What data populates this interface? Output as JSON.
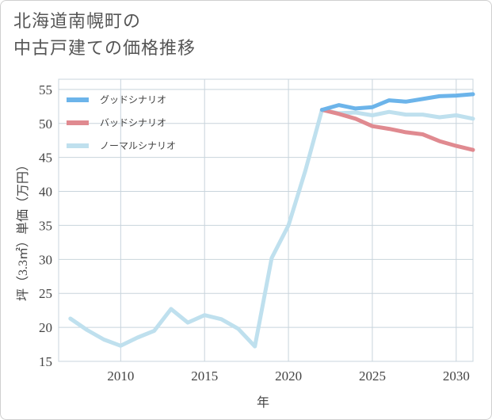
{
  "title_lines": [
    "北海道南幌町の",
    "中古戸建ての価格推移"
  ],
  "chart_data": {
    "type": "line",
    "xlabel": "年",
    "ylabel": "坪（3.3㎡）単価（万円）",
    "xlim": [
      2006.3,
      2031
    ],
    "ylim": [
      15,
      56.5
    ],
    "xticks": [
      2010,
      2015,
      2020,
      2025,
      2030
    ],
    "yticks": [
      15,
      20,
      25,
      30,
      35,
      40,
      45,
      50,
      55
    ],
    "grid": true,
    "legend_position": "top-left",
    "series": [
      {
        "name": "グッドシナリオ",
        "color": "#6cb4ea",
        "x": [
          2022,
          2023,
          2024,
          2025,
          2026,
          2027,
          2028,
          2029,
          2030,
          2031
        ],
        "y": [
          52.0,
          52.7,
          52.2,
          52.4,
          53.4,
          53.2,
          53.6,
          54.0,
          54.1,
          54.3
        ]
      },
      {
        "name": "バッドシナリオ",
        "color": "#e08a90",
        "x": [
          2022,
          2023,
          2024,
          2025,
          2026,
          2027,
          2028,
          2029,
          2030,
          2031
        ],
        "y": [
          52.0,
          51.4,
          50.7,
          49.6,
          49.2,
          48.7,
          48.4,
          47.4,
          46.7,
          46.1
        ]
      },
      {
        "name": "ノーマルシナリオ",
        "color": "#bfe0ee",
        "x": [
          2007,
          2008,
          2009,
          2010,
          2011,
          2012,
          2013,
          2014,
          2015,
          2016,
          2017,
          2018,
          2019,
          2020,
          2021,
          2022,
          2023,
          2024,
          2025,
          2026,
          2027,
          2028,
          2029,
          2030,
          2031
        ],
        "y": [
          21.3,
          19.6,
          18.2,
          17.3,
          18.5,
          19.5,
          22.7,
          20.7,
          21.8,
          21.2,
          19.8,
          17.2,
          30.2,
          35.0,
          43.0,
          52.0,
          51.5,
          51.6,
          51.2,
          51.7,
          51.3,
          51.3,
          50.9,
          51.2,
          50.7
        ]
      }
    ]
  }
}
